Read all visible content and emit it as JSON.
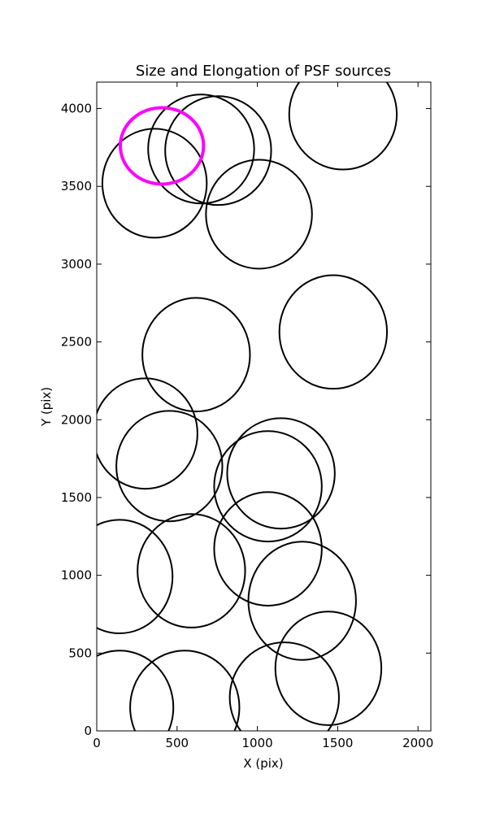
{
  "chart_data": {
    "type": "ellipse",
    "title": "Size and Elongation of PSF sources",
    "x_label": "X (pix)",
    "y_label": "Y (pix)",
    "xlim": [
      0,
      2080
    ],
    "ylim": [
      0,
      4170
    ],
    "xticks": [
      0,
      500,
      1000,
      1500,
      2000
    ],
    "yticks": [
      0,
      500,
      1000,
      1500,
      2000,
      2500,
      3000,
      3500,
      4000
    ],
    "grid": false,
    "ellipses": [
      {
        "x": 360,
        "y": 3520,
        "width": 650,
        "height": 700,
        "color": "#000000",
        "linewidth": 2
      },
      {
        "x": 650,
        "y": 3740,
        "width": 660,
        "height": 700,
        "color": "#000000",
        "linewidth": 2
      },
      {
        "x": 756,
        "y": 3730,
        "width": 660,
        "height": 700,
        "color": "#000000",
        "linewidth": 2
      },
      {
        "x": 1010,
        "y": 3321,
        "width": 660,
        "height": 700,
        "color": "#000000",
        "linewidth": 2
      },
      {
        "x": 1533,
        "y": 3963,
        "width": 670,
        "height": 710,
        "color": "#000000",
        "linewidth": 2
      },
      {
        "x": 1472,
        "y": 2564,
        "width": 670,
        "height": 730,
        "color": "#000000",
        "linewidth": 2
      },
      {
        "x": 619,
        "y": 2418,
        "width": 670,
        "height": 730,
        "color": "#000000",
        "linewidth": 2
      },
      {
        "x": 302,
        "y": 1911,
        "width": 650,
        "height": 710,
        "color": "#000000",
        "linewidth": 2
      },
      {
        "x": 452,
        "y": 1702,
        "width": 660,
        "height": 710,
        "color": "#000000",
        "linewidth": 2
      },
      {
        "x": 1147,
        "y": 1655,
        "width": 670,
        "height": 710,
        "color": "#000000",
        "linewidth": 2
      },
      {
        "x": 1066,
        "y": 1572,
        "width": 670,
        "height": 710,
        "color": "#000000",
        "linewidth": 2
      },
      {
        "x": 1066,
        "y": 1170,
        "width": 670,
        "height": 730,
        "color": "#000000",
        "linewidth": 2
      },
      {
        "x": 589,
        "y": 1029,
        "width": 670,
        "height": 730,
        "color": "#000000",
        "linewidth": 2
      },
      {
        "x": 142,
        "y": 992,
        "width": 660,
        "height": 730,
        "color": "#000000",
        "linewidth": 2
      },
      {
        "x": 1279,
        "y": 836,
        "width": 670,
        "height": 760,
        "color": "#000000",
        "linewidth": 2
      },
      {
        "x": 1442,
        "y": 402,
        "width": 660,
        "height": 730,
        "color": "#000000",
        "linewidth": 2
      },
      {
        "x": 1168,
        "y": 214,
        "width": 680,
        "height": 710,
        "color": "#000000",
        "linewidth": 2
      },
      {
        "x": 548,
        "y": 151,
        "width": 680,
        "height": 730,
        "color": "#000000",
        "linewidth": 2
      },
      {
        "x": 142,
        "y": 151,
        "width": 670,
        "height": 730,
        "color": "#000000",
        "linewidth": 2
      },
      {
        "x": 406,
        "y": 3760,
        "width": 518,
        "height": 491,
        "color": "#ff00ff",
        "linewidth": 4
      }
    ]
  }
}
